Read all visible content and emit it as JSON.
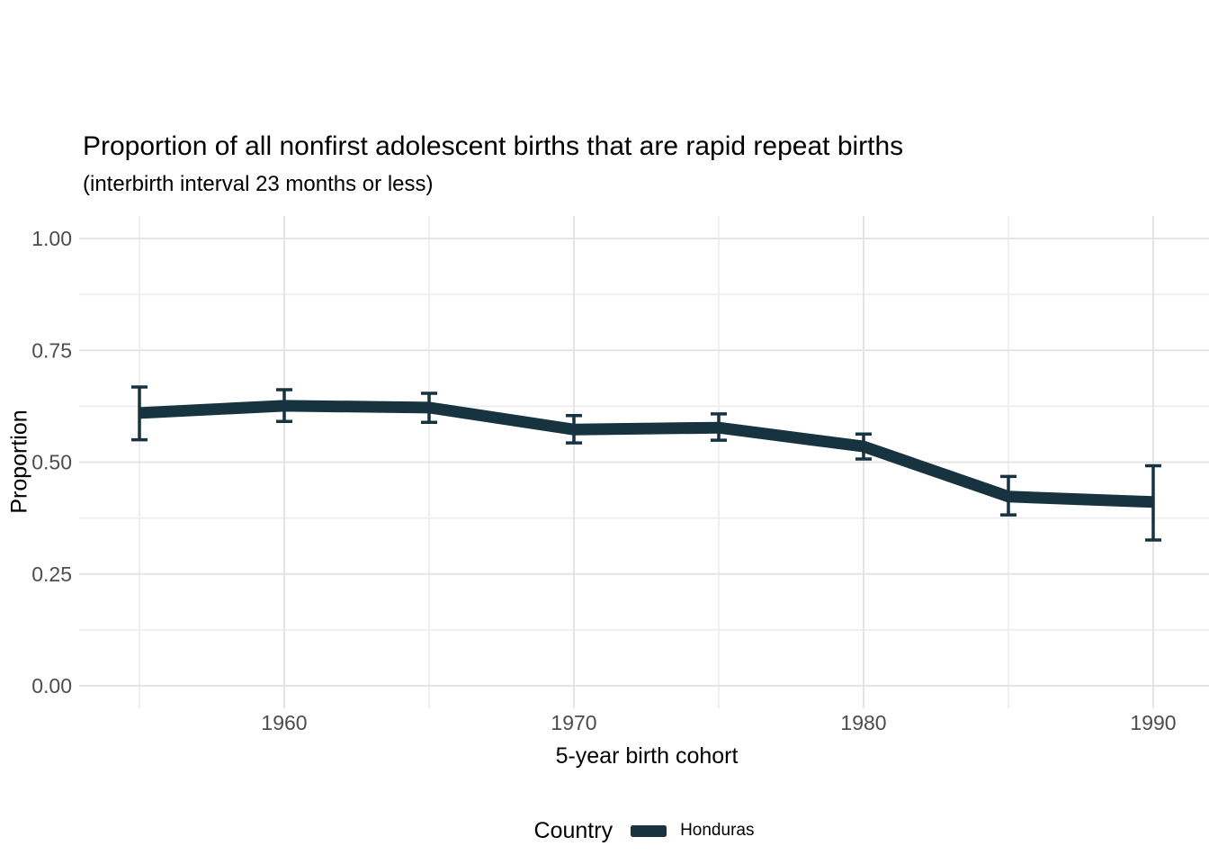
{
  "chart": {
    "title": "Proportion of all nonfirst adolescent births that are rapid repeat births",
    "subtitle": "(interbirth interval 23 months or less)"
  },
  "legend": {
    "title": "Country",
    "position": "bottom",
    "items": [
      {
        "label": "Honduras",
        "color": "#183340"
      }
    ]
  },
  "chart_data": {
    "type": "line",
    "title": "Proportion of all nonfirst adolescent births that are rapid repeat births",
    "subtitle": "(interbirth interval 23 months or less)",
    "xlabel": "5-year birth cohort",
    "ylabel": "Proportion",
    "grid": true,
    "legend_position": "bottom",
    "error_bars": true,
    "ylim": [
      0,
      1
    ],
    "x_axis": {
      "label": "5-year birth cohort",
      "tick_labels": [
        "1960",
        "1970",
        "1980",
        "1990"
      ],
      "tick_values": [
        1960,
        1970,
        1980,
        1990
      ],
      "minor_tick_values": [
        1955,
        1965,
        1975,
        1985
      ]
    },
    "y_axis": {
      "label": "Proportion",
      "tick_labels": [
        "0.00",
        "0.25",
        "0.50",
        "0.75",
        "1.00"
      ],
      "tick_values": [
        0,
        0.25,
        0.5,
        0.75,
        1
      ],
      "minor_tick_values": [
        0.125,
        0.375,
        0.625,
        0.875
      ]
    },
    "series": [
      {
        "name": "Honduras",
        "color": "#183340",
        "x": [
          1955,
          1960,
          1965,
          1970,
          1975,
          1980,
          1985,
          1990
        ],
        "y": [
          0.61,
          0.626,
          0.622,
          0.573,
          0.577,
          0.535,
          0.423,
          0.411
        ],
        "ci_low": [
          0.55,
          0.591,
          0.589,
          0.543,
          0.549,
          0.507,
          0.382,
          0.326
        ],
        "ci_high": [
          0.668,
          0.662,
          0.654,
          0.604,
          0.608,
          0.563,
          0.468,
          0.492
        ]
      }
    ]
  }
}
